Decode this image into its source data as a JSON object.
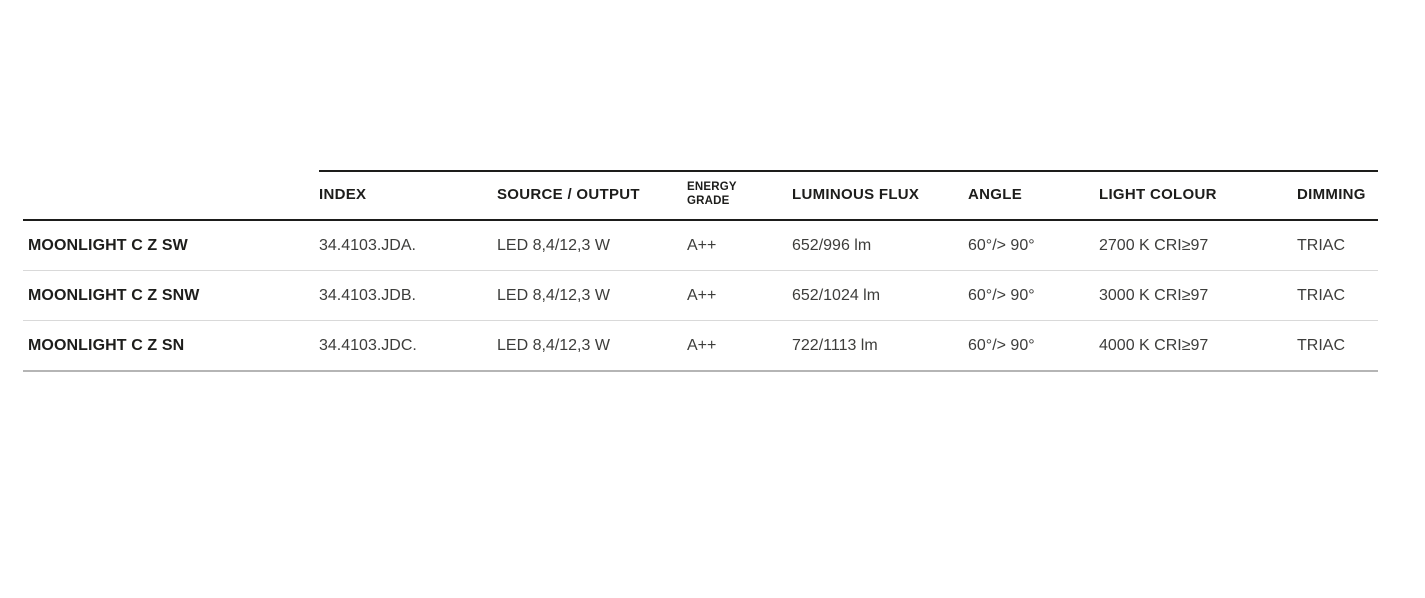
{
  "table": {
    "columns": [
      {
        "key": "name",
        "label": ""
      },
      {
        "key": "index",
        "label": "INDEX"
      },
      {
        "key": "source",
        "label": "SOURCE / OUTPUT"
      },
      {
        "key": "energy",
        "label": "ENERGY GRADE"
      },
      {
        "key": "flux",
        "label": "LUMINOUS FLUX"
      },
      {
        "key": "angle",
        "label": "ANGLE"
      },
      {
        "key": "colour",
        "label": "LIGHT COLOUR"
      },
      {
        "key": "dimming",
        "label": "DIMMING"
      }
    ],
    "rows": [
      {
        "name": "MOONLIGHT C Z SW",
        "index": "34.4103.JDA.",
        "source": "LED 8,4/12,3 W",
        "energy": "A++",
        "flux": "652/996 lm",
        "angle": "60°/> 90°",
        "colour": "2700 K CRI≥97",
        "dimming": "TRIAC"
      },
      {
        "name": "MOONLIGHT C Z SNW",
        "index": "34.4103.JDB.",
        "source": "LED 8,4/12,3 W",
        "energy": "A++",
        "flux": "652/1024 lm",
        "angle": "60°/> 90°",
        "colour": "3000 K CRI≥97",
        "dimming": "TRIAC"
      },
      {
        "name": "MOONLIGHT C Z SN",
        "index": "34.4103.JDC.",
        "source": "LED 8,4/12,3 W",
        "energy": "A++",
        "flux": "722/1113 lm",
        "angle": "60°/> 90°",
        "colour": "4000 K CRI≥97",
        "dimming": "TRIAC"
      }
    ],
    "colors": {
      "header_text": "#1d1d1b",
      "row_text": "#3d3d3b",
      "header_rule": "#1d1d1b",
      "row_separator": "#d9d9d9",
      "bottom_rule": "#b5b5b5",
      "background": "#ffffff"
    }
  }
}
